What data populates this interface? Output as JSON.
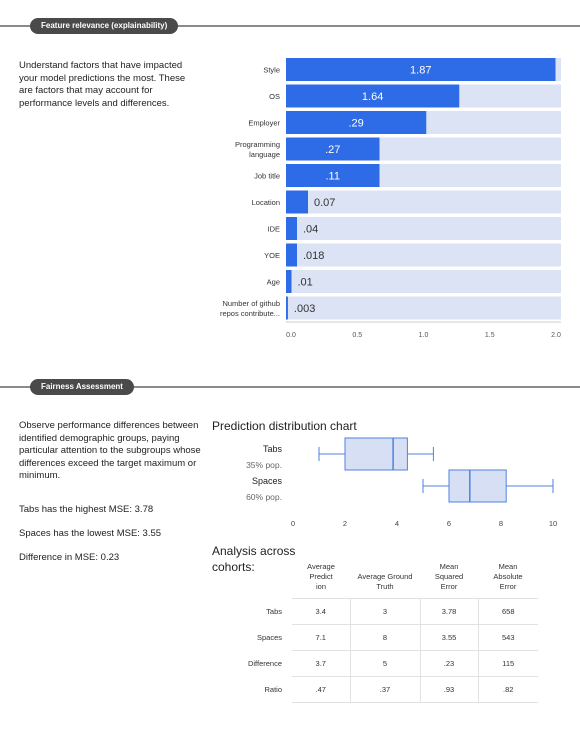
{
  "sections": {
    "feature_relevance": {
      "label": "Feature relevance (explainability)",
      "description": "Understand factors that have impacted your model predictions the most. These are factors that may account for performance levels and differences."
    },
    "fairness": {
      "label": "Fairness Assessment",
      "description": "Observe performance differences between identified demographic groups, paying particular attention to the subgroups whose differences exceed the target maximum or minimum.",
      "highest_mse": "Tabs has the highest MSE: 3.78",
      "lowest_mse": "Spaces has the lowest MSE: 3.55",
      "difference_mse": "Difference in MSE: 0.23"
    }
  },
  "colors": {
    "bar": "#2e6be6",
    "track": "#dce3f5",
    "box_fill": "#d6dff3",
    "box_stroke": "#4f82e0"
  },
  "chart_data": [
    {
      "type": "bar",
      "orientation": "horizontal",
      "categories": [
        [
          "Style"
        ],
        [
          "OS"
        ],
        [
          "Employer"
        ],
        [
          "Programming",
          "language"
        ],
        [
          "Job title"
        ],
        [
          "Location"
        ],
        [
          "IDE"
        ],
        [
          "YOE"
        ],
        [
          "Age"
        ],
        [
          "Number of github",
          "repos contribute..."
        ]
      ],
      "values": [
        1.87,
        1.64,
        0.29,
        0.27,
        0.11,
        0.07,
        0.04,
        0.018,
        0.01,
        0.003
      ],
      "bar_fraction": [
        0.98,
        0.63,
        0.51,
        0.34,
        0.34,
        0.08,
        0.04,
        0.04,
        0.02,
        0.007
      ],
      "value_labels": [
        "1.87",
        "1.64",
        ".29",
        ".27",
        ".11",
        "0.07",
        ".04",
        ".018",
        ".01",
        ".003"
      ],
      "xticks": [
        "0.0",
        "0.5",
        "1.0",
        "1.5",
        "2.0"
      ],
      "xlim": [
        0,
        2.0
      ]
    },
    {
      "type": "box",
      "title": "Prediction distribution chart",
      "series": [
        {
          "name": "Tabs",
          "sub": "35% pop.",
          "min": 1,
          "q1": 2,
          "median": 3.85,
          "q3": 4.4,
          "max": 5.4
        },
        {
          "name": "Spaces",
          "sub": "60% pop.",
          "min": 5,
          "q1": 6,
          "median": 6.8,
          "q3": 8.2,
          "max": 10
        }
      ],
      "xticks": [
        0,
        2,
        4,
        6,
        8,
        10
      ],
      "xlim": [
        0,
        10
      ]
    },
    {
      "type": "table",
      "title": "Analysis across cohorts:",
      "columns": [
        [
          "Average",
          "Predict",
          "ion"
        ],
        [
          "Average Ground",
          "Truth"
        ],
        [
          "Mean",
          "Squared",
          "Error"
        ],
        [
          "Mean",
          "Absolute",
          "Error"
        ]
      ],
      "rows": [
        {
          "label": "Tabs",
          "values": [
            "3.4",
            "3",
            "3.78",
            "658"
          ]
        },
        {
          "label": "Spaces",
          "values": [
            "7.1",
            "8",
            "3.55",
            "543"
          ]
        },
        {
          "label": "Difference",
          "values": [
            "3.7",
            "5",
            ".23",
            "115"
          ]
        },
        {
          "label": "Ratio",
          "values": [
            ".47",
            ".37",
            ".93",
            ".82"
          ]
        }
      ]
    }
  ]
}
